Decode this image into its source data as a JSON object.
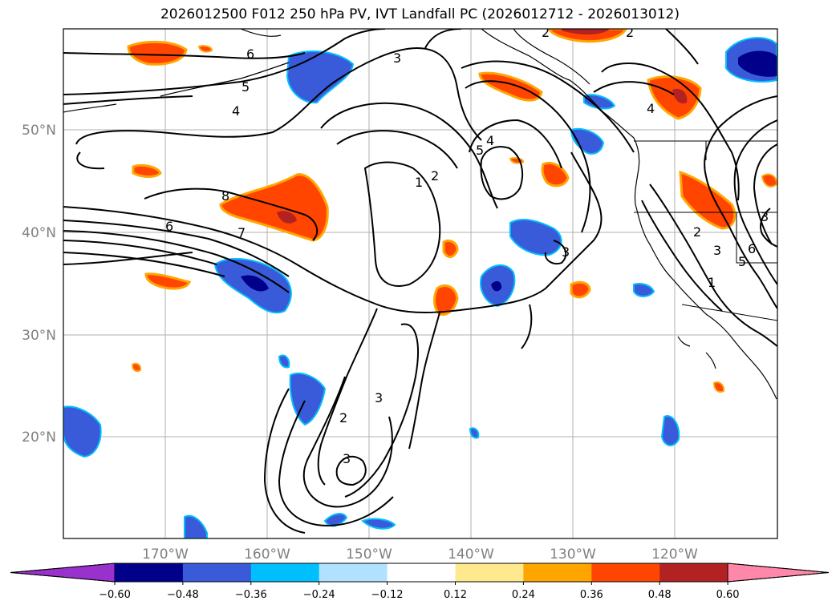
{
  "title": "2026012500 F012 250 hPa PV, IVT Landfall PC (2026012712 - 2026013012)",
  "map": {
    "lat_labels": [
      "50°N",
      "40°N",
      "30°N",
      "20°N"
    ],
    "lon_labels": [
      "170°W",
      "160°W",
      "150°W",
      "140°W",
      "130°W",
      "120°W"
    ],
    "contour_labels": [
      "2",
      "3",
      "2",
      "6",
      "5",
      "4",
      "8",
      "6",
      "7",
      "1",
      "2",
      "5",
      "4",
      "3",
      "4",
      "2",
      "3",
      "2",
      "3",
      "6",
      "5",
      "3",
      "1",
      "3"
    ]
  },
  "colorbar": {
    "ticks": [
      "−0.60",
      "−0.48",
      "−0.36",
      "−0.24",
      "−0.12",
      "0.12",
      "0.24",
      "0.36",
      "0.48",
      "0.60"
    ],
    "colors": [
      "#9932cc",
      "#00008b",
      "#3a5bd9",
      "#00bfff",
      "#b0e2ff",
      "#ffffff",
      "#ffe98e",
      "#ffa500",
      "#ff4500",
      "#b22222",
      "#ff88aa"
    ]
  }
}
